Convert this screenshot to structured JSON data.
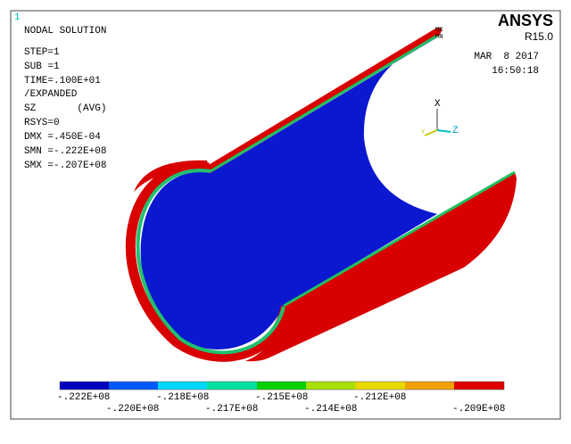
{
  "window_number": "1",
  "info": [
    "NODAL SOLUTION",
    "STEP=1",
    "SUB =1",
    "TIME=.100E+01",
    "/EXPANDED",
    "SZ       (AVG)",
    "RSYS=0",
    "DMX =.450E-04",
    "SMN =-.222E+08",
    "SMX =-.207E+08"
  ],
  "brand": {
    "name": "ANSYS",
    "version": "R15.0",
    "date": "MAR  8 2017",
    "time": "16:50:18"
  },
  "markers": {
    "max": "MX",
    "min": "MN"
  },
  "triad": {
    "x": "X",
    "y": "Y",
    "z": "Z"
  },
  "legend": {
    "labels": [
      "-.222E+08",
      "-.220E+08",
      "-.218E+08",
      "-.217E+08",
      "-.215E+08",
      "-.214E+08",
      "-.212E+08",
      "-.209E+08"
    ]
  }
}
